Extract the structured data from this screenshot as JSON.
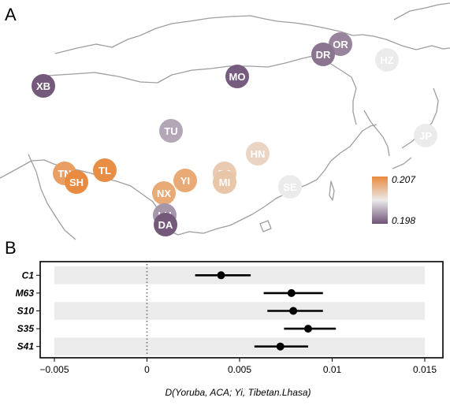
{
  "panels": {
    "a": "A",
    "b": "B"
  },
  "colors": {
    "low": "#6e5276",
    "mid": "#ebebeb",
    "high": "#e8893c",
    "coastline": "#9e9e9e",
    "band": "#ebebeb",
    "point": "#000000"
  },
  "chart_data": [
    {
      "type": "map",
      "legend": {
        "max_label": "0.207",
        "min_label": "0.198",
        "max": 0.207,
        "min": 0.198,
        "placement": "bottom-right"
      },
      "populations": [
        {
          "label": "OR",
          "value": 0.1995
        },
        {
          "label": "DR",
          "value": 0.199
        },
        {
          "label": "HZ",
          "value": 0.2025
        },
        {
          "label": "XB",
          "value": 0.1982
        },
        {
          "label": "MO",
          "value": 0.1983
        },
        {
          "label": "TU",
          "value": 0.2005
        },
        {
          "label": "JP",
          "value": 0.2025
        },
        {
          "label": "HN",
          "value": 0.2035
        },
        {
          "label": "TL",
          "value": 0.2068
        },
        {
          "label": "TN",
          "value": 0.206
        },
        {
          "label": "SH",
          "value": 0.2069
        },
        {
          "label": "TJ",
          "value": 0.204
        },
        {
          "label": "MI",
          "value": 0.2042
        },
        {
          "label": "YI",
          "value": 0.2055
        },
        {
          "label": "NX",
          "value": 0.2055
        },
        {
          "label": "SE",
          "value": 0.2025
        },
        {
          "label": "LH",
          "value": 0.2
        },
        {
          "label": "DA",
          "value": 0.1982
        }
      ]
    },
    {
      "type": "scatter",
      "categories": [
        "C1",
        "M63",
        "S10",
        "S35",
        "S41"
      ],
      "values": [
        0.004,
        0.0078,
        0.0079,
        0.0087,
        0.0072
      ],
      "lower": [
        0.0026,
        0.0063,
        0.0065,
        0.0074,
        0.0058
      ],
      "upper": [
        0.0056,
        0.0095,
        0.0095,
        0.0102,
        0.0087
      ],
      "xlim": [
        -0.005,
        0.015
      ],
      "xticks": [
        -0.005,
        0,
        0.005,
        0.01,
        0.015
      ],
      "xtick_labels": [
        "−0.005",
        "0",
        "0.005",
        "0.01",
        "0.015"
      ],
      "xlabel": "D(Yoruba, ACA; Yi, Tibetan.Lhasa)",
      "reference_line": 0
    }
  ]
}
